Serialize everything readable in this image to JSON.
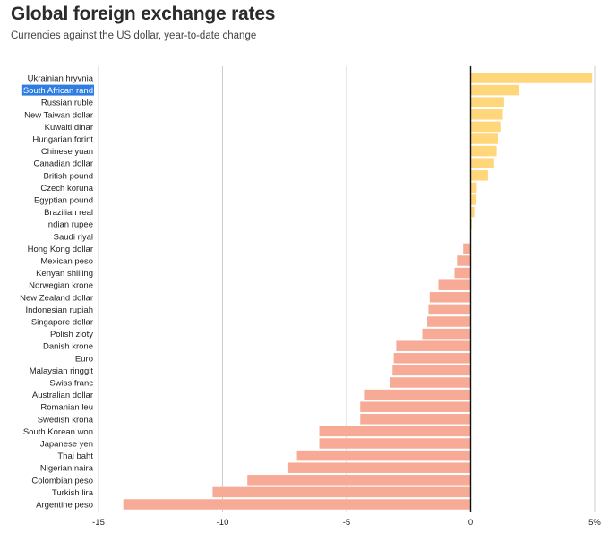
{
  "header": {
    "title": "Global foreign exchange rates",
    "subtitle": "Currencies against the US dollar, year-to-date change"
  },
  "colors": {
    "positive": "#ffd67a",
    "negative": "#f7ab97",
    "grid": "#cccccc",
    "zero_line": "#111111",
    "selection": "#2f7de1"
  },
  "chart_data": {
    "type": "bar",
    "orientation": "horizontal",
    "title": "Global foreign exchange rates",
    "subtitle": "Currencies against the US dollar, year-to-date change",
    "xlabel": "",
    "ylabel": "",
    "xlim": [
      -15,
      5
    ],
    "x_ticks": [
      -15,
      -10,
      -5,
      0,
      5
    ],
    "x_tick_labels": [
      "-15",
      "-10",
      "-5",
      "0",
      "5%"
    ],
    "grid": true,
    "highlighted_category": "South African rand",
    "categories": [
      "Ukrainian hryvnia",
      "South African rand",
      "Russian ruble",
      "New Taiwan dollar",
      "Kuwaiti dinar",
      "Hungarian forint",
      "Chinese yuan",
      "Canadian dollar",
      "British pound",
      "Czech koruna",
      "Egyptian pound",
      "Brazilian real",
      "Indian rupee",
      "Saudi riyal",
      "Hong Kong dollar",
      "Mexican peso",
      "Kenyan shilling",
      "Norwegian krone",
      "New Zealand dollar",
      "Indonesian rupiah",
      "Singapore dollar",
      "Polish zloty",
      "Danish krone",
      "Euro",
      "Malaysian ringgit",
      "Swiss franc",
      "Australian dollar",
      "Romanian leu",
      "Swedish krona",
      "South Korean won",
      "Japanese yen",
      "Thai baht",
      "Nigerian naira",
      "Colombian peso",
      "Turkish lira",
      "Argentine peso"
    ],
    "values": [
      4.9,
      1.95,
      1.35,
      1.3,
      1.2,
      1.1,
      1.05,
      0.95,
      0.7,
      0.25,
      0.2,
      0.15,
      0.05,
      0.0,
      -0.3,
      -0.55,
      -0.65,
      -1.3,
      -1.65,
      -1.7,
      -1.75,
      -1.95,
      -3.0,
      -3.1,
      -3.15,
      -3.25,
      -4.3,
      -4.45,
      -4.45,
      -6.1,
      -6.1,
      -7.0,
      -7.35,
      -9.0,
      -10.4,
      -14.0
    ]
  }
}
